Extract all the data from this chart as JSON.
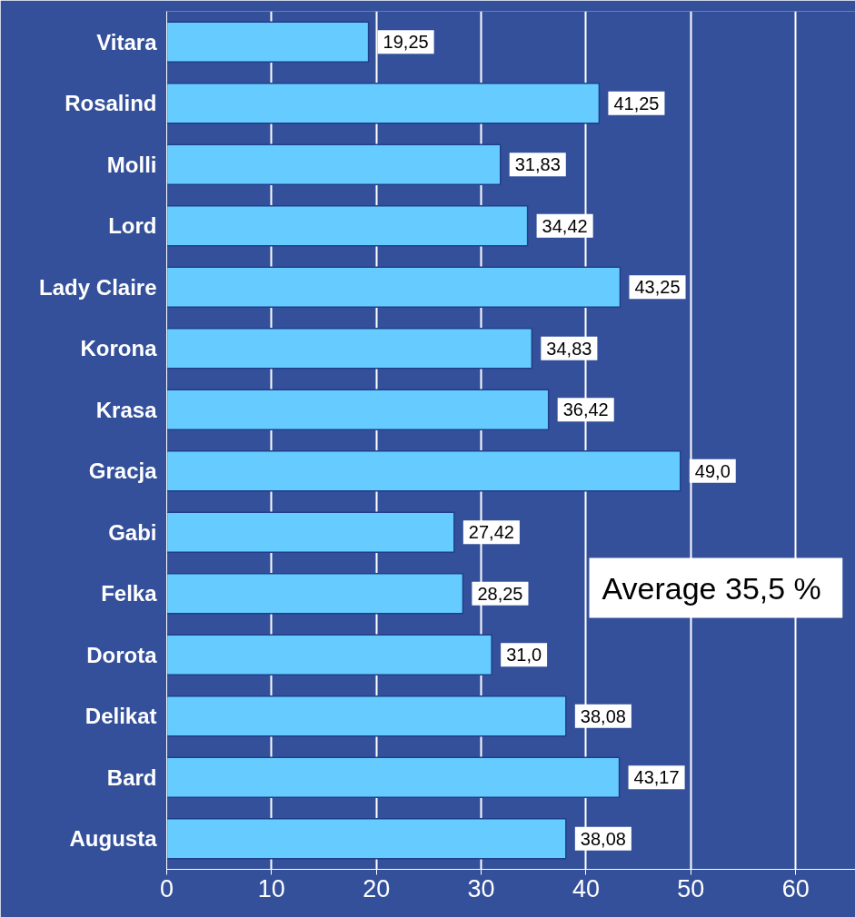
{
  "chart_data": {
    "type": "bar",
    "orientation": "horizontal",
    "categories": [
      "Vitara",
      "Rosalind",
      "Molli",
      "Lord",
      "Lady Claire",
      "Korona",
      "Krasa",
      "Gracja",
      "Gabi",
      "Felka",
      "Dorota",
      "Delikat",
      "Bard",
      "Augusta"
    ],
    "values": [
      19.25,
      41.25,
      31.83,
      34.42,
      43.25,
      34.83,
      36.42,
      49.0,
      27.42,
      28.25,
      31.0,
      38.08,
      43.17,
      38.08
    ],
    "value_labels": [
      "19,25",
      "41,25",
      "31,83",
      "34,42",
      "43,25",
      "34,83",
      "36,42",
      "49,0",
      "27,42",
      "28,25",
      "31,0",
      "38,08",
      "43,17",
      "38,08"
    ],
    "color": "#66ccff",
    "xlim": [
      0,
      65.7
    ],
    "xticks": [
      0,
      10,
      20,
      30,
      40,
      50,
      60
    ],
    "grid": "x",
    "annotations": [
      "Average  35,5 %"
    ]
  }
}
